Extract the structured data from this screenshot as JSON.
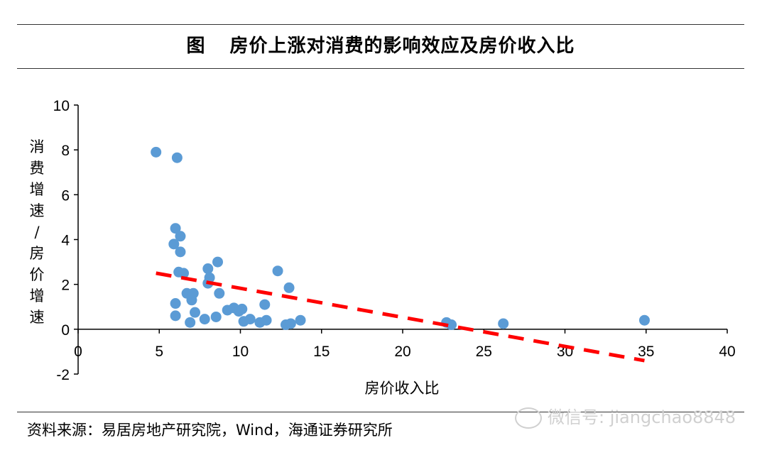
{
  "header": {
    "prefix": "图",
    "title": "房价上涨对消费的影响效应及房价收入比"
  },
  "chart_data": {
    "type": "scatter",
    "title": "房价上涨对消费的影响效应及房价收入比",
    "xlabel": "房价收入比",
    "ylabel": "消费增速/房价增速",
    "xlim": [
      0,
      40
    ],
    "ylim": [
      -2,
      10
    ],
    "xticks": [
      0,
      5,
      10,
      15,
      20,
      25,
      30,
      35,
      40
    ],
    "yticks": [
      -2,
      0,
      2,
      4,
      6,
      8,
      10
    ],
    "grid": false,
    "point_color": "#5b9bd5",
    "trend_color": "#ff0000",
    "points": [
      [
        4.8,
        7.9
      ],
      [
        6.1,
        7.65
      ],
      [
        6.0,
        4.5
      ],
      [
        6.3,
        4.15
      ],
      [
        5.9,
        3.8
      ],
      [
        6.3,
        3.45
      ],
      [
        6.2,
        2.55
      ],
      [
        6.5,
        2.5
      ],
      [
        6.0,
        1.15
      ],
      [
        6.0,
        0.6
      ],
      [
        6.7,
        1.6
      ],
      [
        7.0,
        1.3
      ],
      [
        7.1,
        1.6
      ],
      [
        7.2,
        0.75
      ],
      [
        6.9,
        0.3
      ],
      [
        7.8,
        0.45
      ],
      [
        8.0,
        2.7
      ],
      [
        8.1,
        2.3
      ],
      [
        8.0,
        2.05
      ],
      [
        8.6,
        3.0
      ],
      [
        8.7,
        1.6
      ],
      [
        8.5,
        0.55
      ],
      [
        9.2,
        0.85
      ],
      [
        9.6,
        0.95
      ],
      [
        9.9,
        0.8
      ],
      [
        10.1,
        0.9
      ],
      [
        10.2,
        0.35
      ],
      [
        10.6,
        0.45
      ],
      [
        11.2,
        0.3
      ],
      [
        11.5,
        1.1
      ],
      [
        11.6,
        0.4
      ],
      [
        12.3,
        2.6
      ],
      [
        12.8,
        0.2
      ],
      [
        13.0,
        1.85
      ],
      [
        13.1,
        0.25
      ],
      [
        13.7,
        0.4
      ],
      [
        22.7,
        0.3
      ],
      [
        23.0,
        0.2
      ],
      [
        26.2,
        0.25
      ],
      [
        34.9,
        0.4
      ]
    ],
    "trendline": {
      "x": [
        4.8,
        34.9
      ],
      "y": [
        2.5,
        -1.4
      ],
      "style": "dashed"
    }
  },
  "footer": {
    "source": "资料来源：易居房地产研究院，Wind，海通证券研究所"
  },
  "watermark": {
    "text": "微信号: jiangchao8848"
  }
}
